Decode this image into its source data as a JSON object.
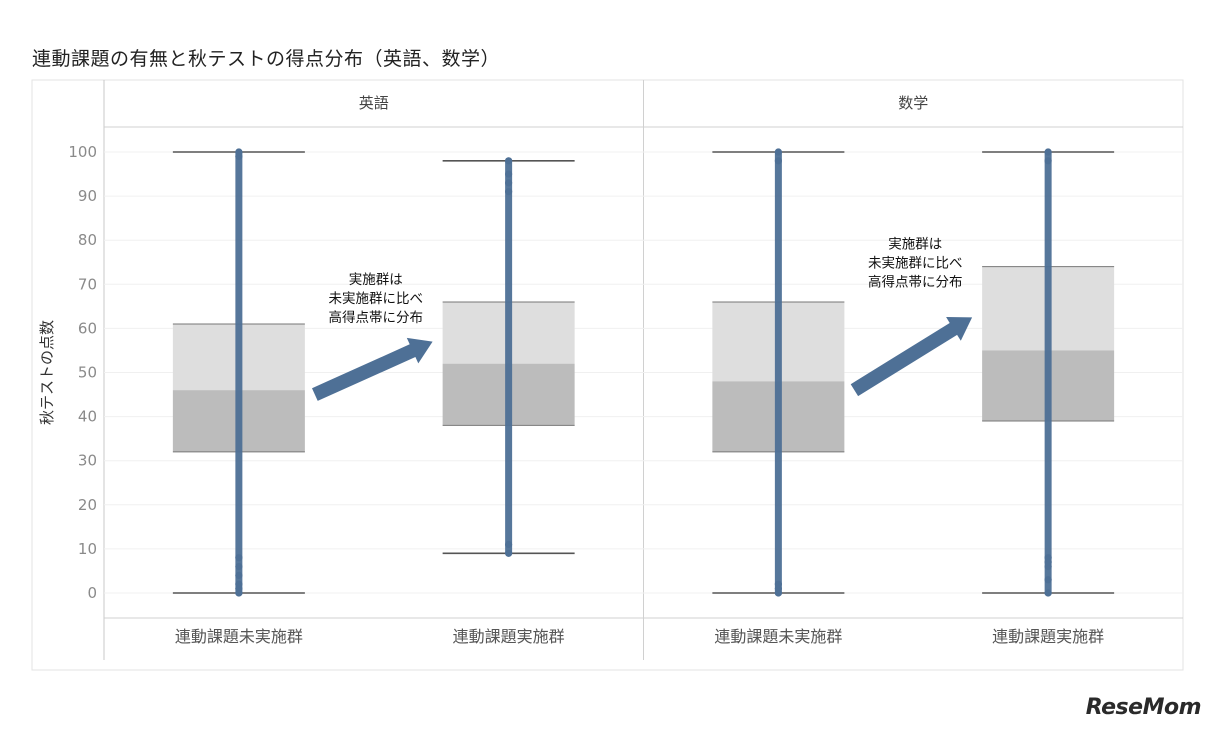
{
  "title": "連動課題の有無と秋テストの得点分布（英語、数学）",
  "logo": "ReseMom",
  "chart_data": {
    "type": "boxplot",
    "ylabel": "秋テストの点数",
    "ylim": [
      -5,
      105
    ],
    "yticks": [
      0,
      10,
      20,
      30,
      40,
      50,
      60,
      70,
      80,
      90,
      100
    ],
    "grid": true,
    "colors": {
      "points": "#4e7096",
      "box_upper": "#dedede",
      "box_lower": "#bcbcbc",
      "whisker": "#555555",
      "arrow": "#4e7096"
    },
    "panels": [
      {
        "title": "英語",
        "annotation": [
          "実施群は",
          "未実施群に比べ",
          "高得点帯に分布"
        ],
        "groups": [
          {
            "label": "連動課題未実施群",
            "min": 0,
            "q1": 32,
            "median": 46,
            "q3": 61,
            "max": 100,
            "outliers": [
              0,
              1,
              2,
              4,
              6,
              8,
              99,
              100
            ]
          },
          {
            "label": "連動課題実施群",
            "min": 9,
            "q1": 38,
            "median": 52,
            "q3": 66,
            "max": 98,
            "outliers": [
              9,
              11,
              91,
              93,
              95,
              98
            ]
          }
        ]
      },
      {
        "title": "数学",
        "annotation": [
          "実施群は",
          "未実施群に比べ",
          "高得点帯に分布"
        ],
        "groups": [
          {
            "label": "連動課題未実施群",
            "min": 0,
            "q1": 32,
            "median": 48,
            "q3": 66,
            "max": 100,
            "outliers": [
              0,
              1,
              2,
              98,
              100
            ]
          },
          {
            "label": "連動課題実施群",
            "min": 0,
            "q1": 39,
            "median": 55,
            "q3": 74,
            "max": 100,
            "outliers": [
              0,
              3,
              6,
              7,
              8,
              98,
              100
            ]
          }
        ]
      }
    ]
  }
}
